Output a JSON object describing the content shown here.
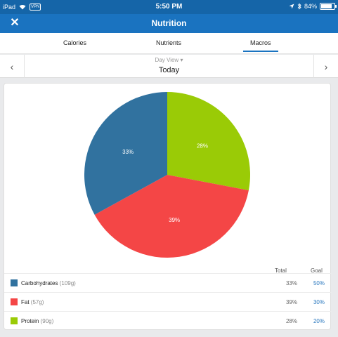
{
  "status_bar": {
    "device": "iPad",
    "vpn": "VPN",
    "time": "5:50 PM",
    "battery": "84%",
    "battery_level": 0.84
  },
  "navbar": {
    "close": "✕",
    "title": "Nutrition"
  },
  "tabs": [
    {
      "label": "Calories",
      "active": false
    },
    {
      "label": "Nutrients",
      "active": false
    },
    {
      "label": "Macros",
      "active": true
    }
  ],
  "day": {
    "view_label": "Day View",
    "dropdown_icon": "▾",
    "date": "Today",
    "prev_icon": "‹",
    "next_icon": "›"
  },
  "legend": {
    "total_header": "Total",
    "goal_header": "Goal",
    "rows": [
      {
        "name": "Carbohydrates",
        "amount": "(109g)",
        "total": "33%",
        "goal": "50%",
        "color": "#31729f"
      },
      {
        "name": "Fat",
        "amount": "(57g)",
        "total": "39%",
        "goal": "30%",
        "color": "#f44646"
      },
      {
        "name": "Protein",
        "amount": "(90g)",
        "total": "28%",
        "goal": "20%",
        "color": "#9acb06"
      }
    ]
  },
  "chart_data": {
    "type": "pie",
    "categories": [
      "Protein",
      "Fat",
      "Carbohydrates"
    ],
    "values": [
      28,
      39,
      33
    ],
    "labels": [
      "28%",
      "39%",
      "33%"
    ],
    "colors": [
      "#9acb06",
      "#f44646",
      "#31729f"
    ]
  }
}
